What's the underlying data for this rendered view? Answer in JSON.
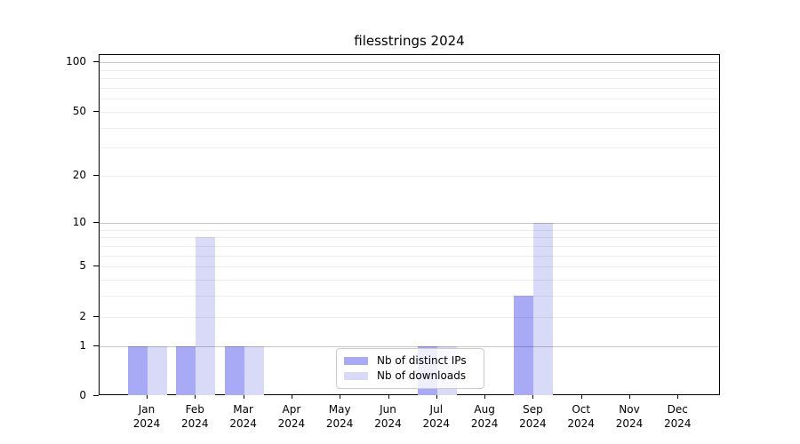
{
  "title": "filesstrings 2024",
  "chart_data": {
    "type": "bar",
    "title": "filesstrings 2024",
    "categories": [
      "Jan",
      "Feb",
      "Mar",
      "Apr",
      "May",
      "Jun",
      "Jul",
      "Aug",
      "Sep",
      "Oct",
      "Nov",
      "Dec"
    ],
    "x_year": "2024",
    "series": [
      {
        "name": "Nb of distinct IPs",
        "color": "#a9aaf5",
        "values": [
          1,
          1,
          1,
          0,
          0,
          0,
          1,
          0,
          3,
          0,
          0,
          0
        ]
      },
      {
        "name": "Nb of downloads",
        "color": "#d9daf8",
        "values": [
          1,
          8,
          1,
          0,
          0,
          0,
          1,
          0,
          10,
          0,
          0,
          0
        ]
      }
    ],
    "y_axis": {
      "scale": "log1p",
      "tick_labels": [
        "0",
        "1",
        "2",
        "5",
        "10",
        "20",
        "50",
        "100"
      ],
      "ticks": [
        0,
        1,
        2,
        5,
        10,
        20,
        50,
        100
      ],
      "major_gridlines": [
        1,
        10,
        100
      ],
      "minor_gridlines": [
        2,
        3,
        4,
        5,
        6,
        7,
        8,
        9,
        20,
        30,
        40,
        50,
        60,
        70,
        80,
        90
      ],
      "range": [
        0,
        107
      ]
    },
    "legend": {
      "position": "lower center"
    },
    "grid": true,
    "xlabel": "",
    "ylabel": ""
  }
}
